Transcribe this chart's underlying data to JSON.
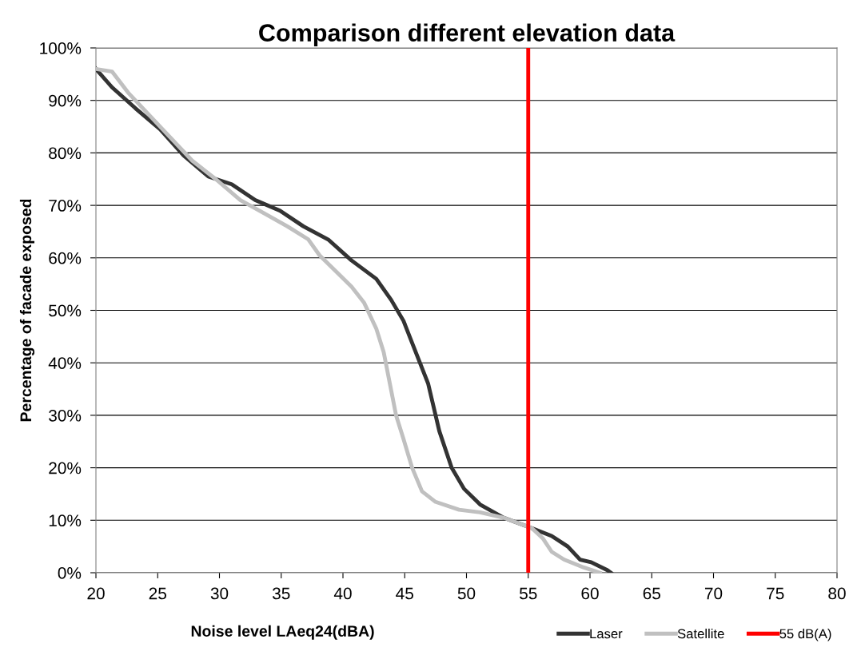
{
  "chart_data": {
    "type": "line",
    "title": "Comparison different elevation data",
    "xlabel": "Noise level LAeq24(dBA)",
    "ylabel": "Percentage of facade exposed",
    "series": [
      {
        "name": "Laser",
        "color": "#333333",
        "x": [
          20,
          21.3,
          23.2,
          25.2,
          27.1,
          29.1,
          31,
          32.9,
          34.9,
          36.8,
          38.8,
          40.7,
          42.7,
          43.9,
          44.9,
          45.9,
          46.9,
          47.8,
          48.8,
          49.8,
          51.1,
          53,
          55.3,
          56.9,
          58.2,
          59.2,
          60.1,
          61.4,
          61.7
        ],
        "values": [
          96,
          92.5,
          88.5,
          84.5,
          79.5,
          75.5,
          74,
          71,
          69,
          66,
          63.5,
          59.5,
          56,
          52,
          48,
          42,
          36,
          27,
          20,
          16,
          13,
          10.5,
          8.5,
          7,
          5,
          2.5,
          2,
          0.5,
          0
        ]
      },
      {
        "name": "Satellite",
        "color": "#c0c0c0",
        "x": [
          20,
          21.3,
          22.6,
          25.2,
          27.8,
          29.7,
          31.7,
          33.6,
          35.5,
          37.2,
          38.1,
          39.4,
          40.7,
          41.7,
          42.7,
          43.3,
          43.8,
          44.3,
          44.9,
          45.6,
          46.4,
          47.5,
          49.4,
          51.1,
          53,
          55.3,
          56.2,
          56.9,
          57.9,
          59.5,
          60.8
        ],
        "values": [
          96,
          95.5,
          91.5,
          85,
          78.5,
          75,
          71,
          68.5,
          66,
          63.5,
          60.5,
          57.5,
          54.5,
          51.5,
          46.5,
          42,
          36,
          30,
          25.5,
          20,
          15.5,
          13.5,
          12,
          11.5,
          10.5,
          8.5,
          6.5,
          4,
          2.5,
          1,
          0
        ]
      }
    ],
    "ref_lines": [
      {
        "axis": "x",
        "value": 55,
        "label": "55 dB(A)",
        "color": "#ff0000"
      }
    ],
    "xlim": [
      20,
      80
    ],
    "xticks": [
      20,
      25,
      30,
      35,
      40,
      45,
      50,
      55,
      60,
      65,
      70,
      75,
      80
    ],
    "ylim": [
      0,
      100
    ],
    "yticks": [
      {
        "value": 0,
        "label": "0%"
      },
      {
        "value": 10,
        "label": "10%"
      },
      {
        "value": 20,
        "label": "20%"
      },
      {
        "value": 30,
        "label": "30%"
      },
      {
        "value": 40,
        "label": "40%"
      },
      {
        "value": 50,
        "label": "50%"
      },
      {
        "value": 60,
        "label": "60%"
      },
      {
        "value": 70,
        "label": "70%"
      },
      {
        "value": 80,
        "label": "80%"
      },
      {
        "value": 90,
        "label": "90%"
      },
      {
        "value": 100,
        "label": "100%"
      }
    ],
    "grid": "y",
    "legend": "bottom right",
    "line_style": "solid"
  }
}
